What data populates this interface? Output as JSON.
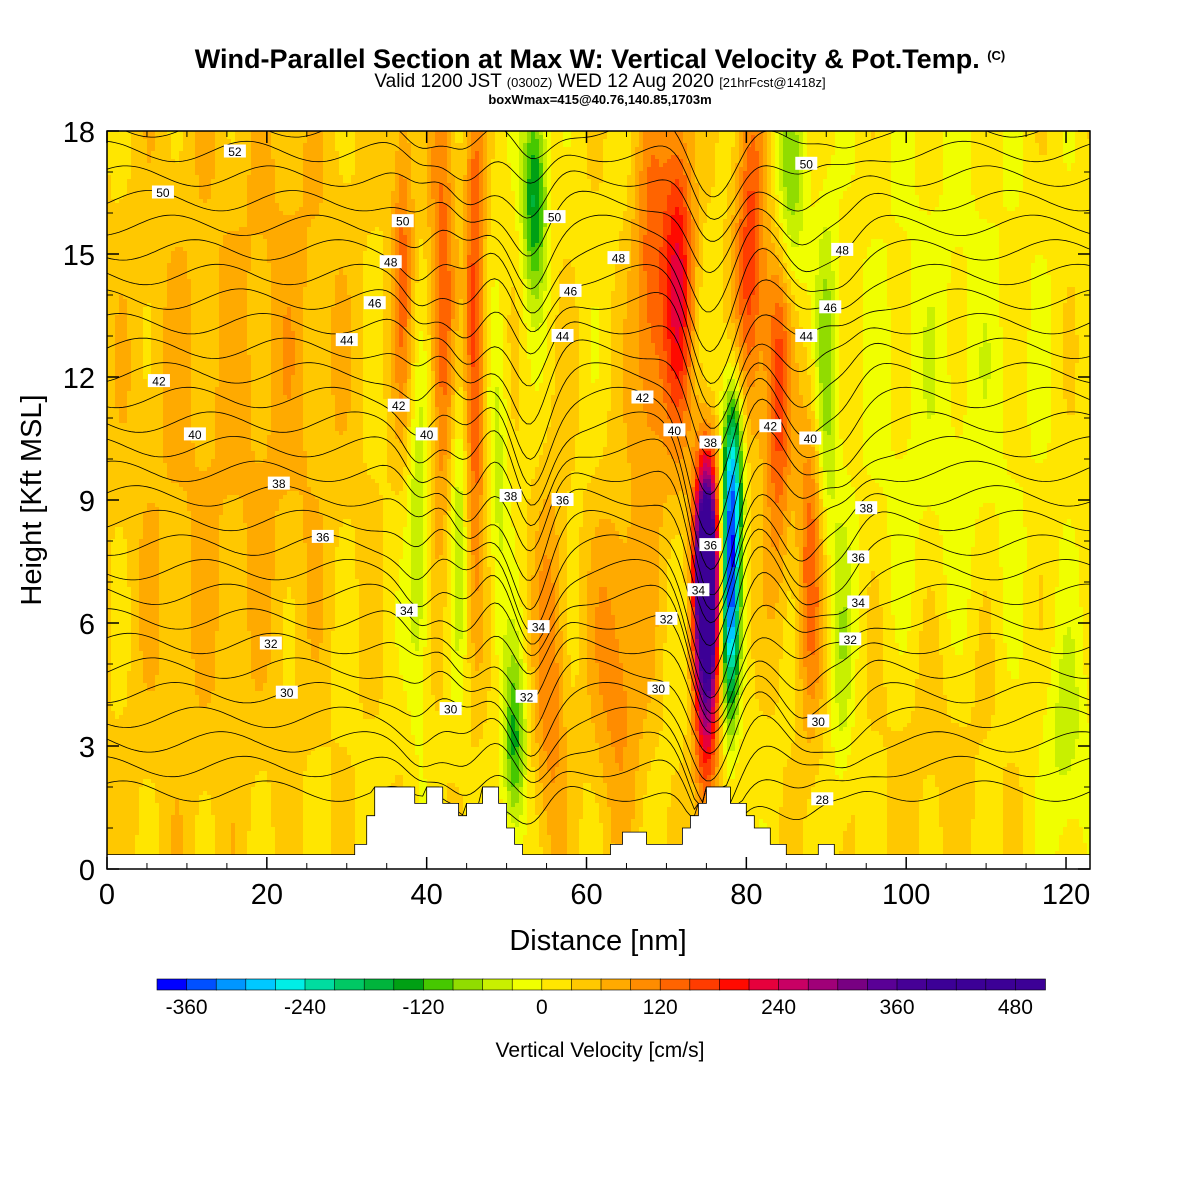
{
  "titles": {
    "main": "Wind-Parallel Section at Max W: Vertical Velocity & Pot.Temp.",
    "main_suffix": "(C)",
    "valid_prefix": "Valid 1200 JST",
    "valid_zulu": "(0300Z)",
    "valid_date": "WED 12 Aug 2020",
    "valid_fcst": "[21hrFcst@1418z]",
    "box": "boxWmax=415@40.76,140.85,1703m"
  },
  "chart_data": {
    "type": "heatmap",
    "xlabel": "Distance [nm]",
    "ylabel": "Height [Kft MSL]",
    "xlim": [
      0,
      123
    ],
    "ylim": [
      0,
      18
    ],
    "x_ticks": [
      "0",
      "20",
      "40",
      "60",
      "80",
      "100",
      "120"
    ],
    "y_ticks": [
      "0",
      "3",
      "6",
      "9",
      "12",
      "15",
      "18"
    ],
    "x_tick_values": [
      0,
      20,
      40,
      60,
      80,
      100,
      120
    ],
    "y_tick_values": [
      0,
      3,
      6,
      9,
      12,
      15,
      18
    ],
    "colorbar": {
      "label": "Vertical Velocity [cm/s]",
      "tick_labels": [
        "-360",
        "-240",
        "-120",
        "0",
        "120",
        "240",
        "360",
        "480"
      ],
      "tick_values": [
        -360,
        -240,
        -120,
        0,
        120,
        240,
        360,
        480
      ],
      "range": [
        -390,
        510
      ],
      "step": 30,
      "colors": [
        "#0000ff",
        "#0050ff",
        "#0096ff",
        "#00c8ff",
        "#00eee6",
        "#00dca0",
        "#00c864",
        "#00b43c",
        "#00a014",
        "#46c800",
        "#91dc00",
        "#c8f000",
        "#f0ff00",
        "#ffe600",
        "#ffc800",
        "#ffaa00",
        "#ff8c00",
        "#ff6400",
        "#ff3c00",
        "#ff0a00",
        "#e6003c",
        "#c80064",
        "#a00078",
        "#780082",
        "#5a0096",
        "#460096",
        "#3c0096",
        "#3c0096",
        "#3c0096",
        "#3c0096"
      ]
    },
    "terrain_kft": [
      [
        0,
        0.35
      ],
      [
        31,
        0.35
      ],
      [
        31,
        0.6
      ],
      [
        32.5,
        0.6
      ],
      [
        32.5,
        1.3
      ],
      [
        33.5,
        1.3
      ],
      [
        33.5,
        2.0
      ],
      [
        38.5,
        2.0
      ],
      [
        38.5,
        1.6
      ],
      [
        40,
        1.6
      ],
      [
        40,
        2.0
      ],
      [
        42,
        2.0
      ],
      [
        42,
        1.6
      ],
      [
        44,
        1.6
      ],
      [
        44,
        1.3
      ],
      [
        45,
        1.3
      ],
      [
        45,
        1.6
      ],
      [
        47,
        1.6
      ],
      [
        47,
        2.0
      ],
      [
        49,
        2.0
      ],
      [
        49,
        1.6
      ],
      [
        50,
        1.6
      ],
      [
        50,
        1.0
      ],
      [
        51,
        1.0
      ],
      [
        51,
        0.6
      ],
      [
        52,
        0.6
      ],
      [
        52,
        0.35
      ],
      [
        63,
        0.35
      ],
      [
        63,
        0.6
      ],
      [
        64.5,
        0.6
      ],
      [
        64.5,
        0.9
      ],
      [
        67.5,
        0.9
      ],
      [
        67.5,
        0.6
      ],
      [
        72,
        0.6
      ],
      [
        72,
        1.0
      ],
      [
        73,
        1.0
      ],
      [
        73,
        1.3
      ],
      [
        74,
        1.3
      ],
      [
        74,
        1.6
      ],
      [
        75,
        1.6
      ],
      [
        75,
        2.0
      ],
      [
        78,
        2.0
      ],
      [
        78,
        1.6
      ],
      [
        80,
        1.6
      ],
      [
        80,
        1.3
      ],
      [
        81,
        1.3
      ],
      [
        81,
        1.0
      ],
      [
        83,
        1.0
      ],
      [
        83,
        0.6
      ],
      [
        85,
        0.6
      ],
      [
        85,
        0.35
      ],
      [
        89,
        0.35
      ],
      [
        89,
        0.6
      ],
      [
        91,
        0.6
      ],
      [
        91,
        0.35
      ],
      [
        123,
        0.35
      ]
    ],
    "theta_contours_C": [
      26,
      28,
      30,
      32,
      34,
      36,
      38,
      40,
      42,
      44,
      46,
      48,
      50,
      52
    ],
    "contour_labels": [
      {
        "text": "52",
        "x": 16,
        "y": 17.5
      },
      {
        "text": "50",
        "x": 7,
        "y": 16.5
      },
      {
        "text": "50",
        "x": 37,
        "y": 15.8
      },
      {
        "text": "48",
        "x": 35.5,
        "y": 14.8
      },
      {
        "text": "46",
        "x": 33.5,
        "y": 13.8
      },
      {
        "text": "44",
        "x": 30,
        "y": 12.9
      },
      {
        "text": "42",
        "x": 6.5,
        "y": 11.9
      },
      {
        "text": "42",
        "x": 36.5,
        "y": 11.3
      },
      {
        "text": "40",
        "x": 11,
        "y": 10.6
      },
      {
        "text": "40",
        "x": 40,
        "y": 10.6
      },
      {
        "text": "38",
        "x": 21.5,
        "y": 9.4
      },
      {
        "text": "36",
        "x": 27,
        "y": 8.1
      },
      {
        "text": "34",
        "x": 37.5,
        "y": 6.3
      },
      {
        "text": "32",
        "x": 20.5,
        "y": 5.5
      },
      {
        "text": "30",
        "x": 22.5,
        "y": 4.3
      },
      {
        "text": "30",
        "x": 43,
        "y": 3.9
      },
      {
        "text": "32",
        "x": 52.5,
        "y": 4.2
      },
      {
        "text": "34",
        "x": 54,
        "y": 5.9
      },
      {
        "text": "38",
        "x": 50.5,
        "y": 9.1
      },
      {
        "text": "36",
        "x": 57,
        "y": 9.0
      },
      {
        "text": "50",
        "x": 56,
        "y": 15.9
      },
      {
        "text": "46",
        "x": 58,
        "y": 14.1
      },
      {
        "text": "44",
        "x": 57,
        "y": 13.0
      },
      {
        "text": "48",
        "x": 64,
        "y": 14.9
      },
      {
        "text": "42",
        "x": 67,
        "y": 11.5
      },
      {
        "text": "40",
        "x": 71,
        "y": 10.7
      },
      {
        "text": "38",
        "x": 75.5,
        "y": 10.4
      },
      {
        "text": "36",
        "x": 75.5,
        "y": 7.9
      },
      {
        "text": "34",
        "x": 74,
        "y": 6.8
      },
      {
        "text": "32",
        "x": 70,
        "y": 6.1
      },
      {
        "text": "30",
        "x": 69,
        "y": 4.4
      },
      {
        "text": "42",
        "x": 83,
        "y": 10.8
      },
      {
        "text": "40",
        "x": 88,
        "y": 10.5
      },
      {
        "text": "44",
        "x": 87.5,
        "y": 13.0
      },
      {
        "text": "46",
        "x": 90.5,
        "y": 13.7
      },
      {
        "text": "48",
        "x": 92,
        "y": 15.1
      },
      {
        "text": "50",
        "x": 87.5,
        "y": 17.2
      },
      {
        "text": "38",
        "x": 95,
        "y": 8.8
      },
      {
        "text": "36",
        "x": 94,
        "y": 7.6
      },
      {
        "text": "34",
        "x": 94,
        "y": 6.5
      },
      {
        "text": "32",
        "x": 93,
        "y": 5.6
      },
      {
        "text": "30",
        "x": 89,
        "y": 3.6
      },
      {
        "text": "28",
        "x": 89.5,
        "y": 1.7
      }
    ],
    "w_features_cm_s": [
      {
        "x": 75,
        "y": 7.5,
        "w": 480,
        "sx": 1.0,
        "sy": 1.8
      },
      {
        "x": 75,
        "y": 4.8,
        "w": 240,
        "sx": 1.1,
        "sy": 2.4
      },
      {
        "x": 78,
        "y": 7.0,
        "w": -360,
        "sx": 0.8,
        "sy": 2.2
      },
      {
        "x": 78.5,
        "y": 10.0,
        "w": -180,
        "sx": 0.9,
        "sy": 1.5
      },
      {
        "x": 71.5,
        "y": 14.5,
        "w": 180,
        "sx": 1.4,
        "sy": 3.0
      },
      {
        "x": 80.5,
        "y": 15.0,
        "w": 150,
        "sx": 1.4,
        "sy": 3.0
      },
      {
        "x": 85,
        "y": 16.5,
        "w": -120,
        "sx": 1.6,
        "sy": 2.0
      },
      {
        "x": 68,
        "y": 14,
        "w": 120,
        "sx": 1.6,
        "sy": 3.5
      },
      {
        "x": 53.5,
        "y": 16.5,
        "w": -180,
        "sx": 1.1,
        "sy": 1.8
      },
      {
        "x": 51,
        "y": 3.0,
        "w": -150,
        "sx": 1.0,
        "sy": 1.6
      },
      {
        "x": 55.5,
        "y": 4.5,
        "w": 90,
        "sx": 1.5,
        "sy": 3.5
      },
      {
        "x": 42,
        "y": 14,
        "w": 120,
        "sx": 1.2,
        "sy": 4.5
      },
      {
        "x": 46,
        "y": 13,
        "w": 150,
        "sx": 0.9,
        "sy": 4.5
      },
      {
        "x": 37,
        "y": 15,
        "w": 100,
        "sx": 1.0,
        "sy": 3.0
      },
      {
        "x": 39,
        "y": 8,
        "w": -90,
        "sx": 1.0,
        "sy": 3.0
      },
      {
        "x": 44,
        "y": 9,
        "w": -80,
        "sx": 0.9,
        "sy": 3.0
      },
      {
        "x": 49,
        "y": 10,
        "w": -60,
        "sx": 0.9,
        "sy": 3.0
      },
      {
        "x": 84,
        "y": 12,
        "w": 150,
        "sx": 1.2,
        "sy": 3.5
      },
      {
        "x": 88,
        "y": 7.5,
        "w": 120,
        "sx": 1.2,
        "sy": 3.0
      },
      {
        "x": 90,
        "y": 12,
        "w": -90,
        "sx": 1.0,
        "sy": 3.0
      },
      {
        "x": 92,
        "y": 5,
        "w": -60,
        "sx": 1.0,
        "sy": 2.5
      },
      {
        "x": 64,
        "y": 5,
        "w": 90,
        "sx": 2.5,
        "sy": 3.0
      },
      {
        "x": 10,
        "y": 10,
        "w": 40,
        "sx": 8,
        "sy": 8
      },
      {
        "x": 24,
        "y": 13,
        "w": 40,
        "sx": 6,
        "sy": 6
      },
      {
        "x": 105,
        "y": 10,
        "w": -35,
        "sx": 9,
        "sy": 7
      },
      {
        "x": 104,
        "y": 3,
        "w": 40,
        "sx": 7,
        "sy": 3
      },
      {
        "x": 120,
        "y": 3,
        "w": -60,
        "sx": 2,
        "sy": 2
      }
    ]
  }
}
